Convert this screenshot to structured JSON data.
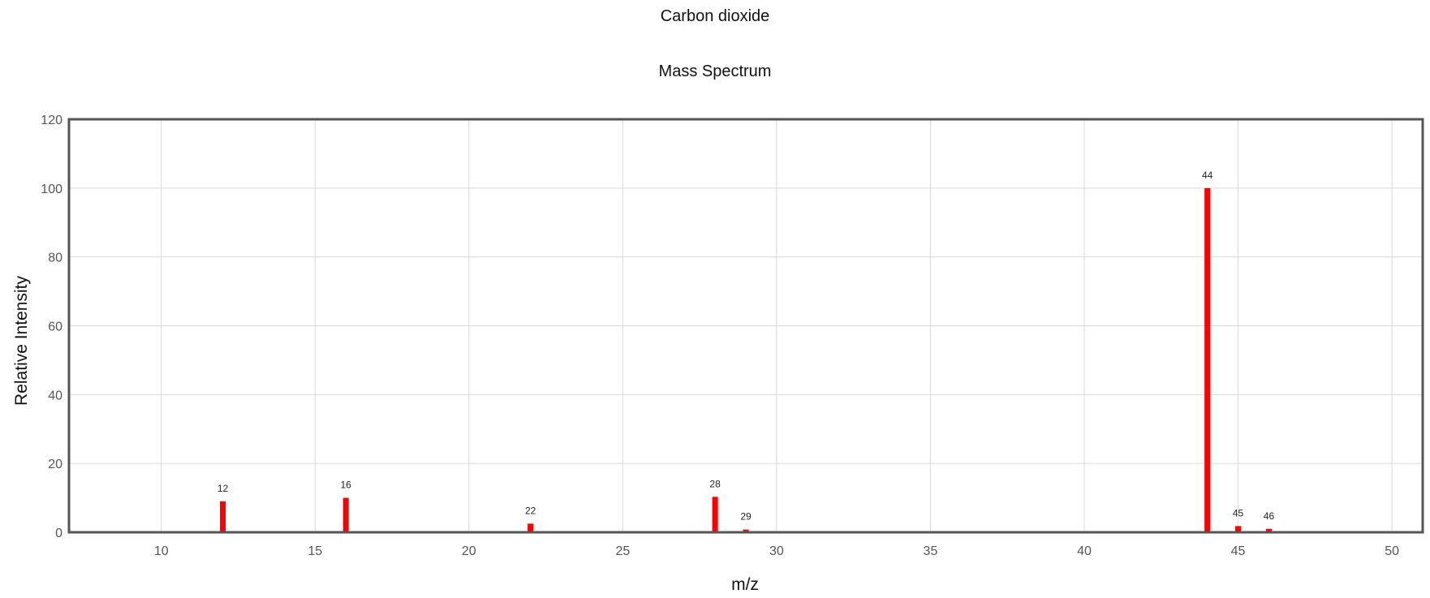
{
  "chart_data": {
    "type": "bar",
    "title": "Carbon dioxide",
    "subtitle": "Mass Spectrum",
    "xlabel": "m/z",
    "ylabel": "Relative Intensity",
    "xlim": [
      7,
      51
    ],
    "ylim": [
      0,
      120
    ],
    "x_ticks": [
      10,
      15,
      20,
      25,
      30,
      35,
      40,
      45,
      50
    ],
    "y_ticks": [
      0,
      20,
      40,
      60,
      80,
      100,
      120
    ],
    "grid": true,
    "bar_color": "#ff0000",
    "peaks": [
      {
        "x": 12,
        "y": 9,
        "label": "12"
      },
      {
        "x": 16,
        "y": 10,
        "label": "16"
      },
      {
        "x": 22,
        "y": 2.5,
        "label": "22"
      },
      {
        "x": 28,
        "y": 10.3,
        "label": "28"
      },
      {
        "x": 29,
        "y": 0.8,
        "label": "29"
      },
      {
        "x": 44,
        "y": 100,
        "label": "44"
      },
      {
        "x": 45,
        "y": 1.8,
        "label": "45"
      },
      {
        "x": 46,
        "y": 1,
        "label": "46"
      }
    ]
  }
}
